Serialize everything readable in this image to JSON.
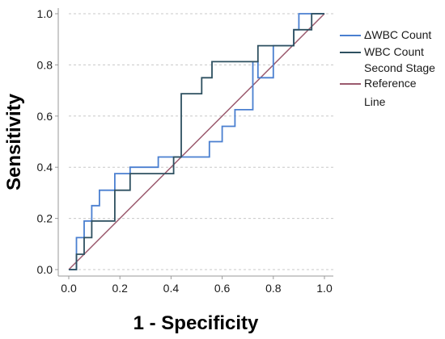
{
  "chart_data": {
    "type": "line",
    "title": "",
    "xlabel": "1 - Specificity",
    "ylabel": "Sensitivity",
    "xlim": [
      0.0,
      1.0
    ],
    "ylim": [
      0.0,
      1.0
    ],
    "x_ticks": [
      "0.0",
      "0.2",
      "0.4",
      "0.6",
      "0.8",
      "1.0"
    ],
    "y_ticks": [
      "0.0",
      "0.2",
      "0.4",
      "0.6",
      "0.8",
      "1.0"
    ],
    "grid": "horizontal dashed",
    "legend_placement": "right",
    "series": [
      {
        "name": "ΔWBC Count",
        "color": "#4a7fd0",
        "x": [
          0,
          0.03,
          0.03,
          0.06,
          0.06,
          0.09,
          0.09,
          0.12,
          0.12,
          0.18,
          0.18,
          0.24,
          0.24,
          0.35,
          0.35,
          0.41,
          0.41,
          0.55,
          0.55,
          0.6,
          0.6,
          0.65,
          0.65,
          0.72,
          0.72,
          0.74,
          0.74,
          0.8,
          0.8,
          0.85,
          0.85,
          0.88,
          0.88,
          0.9,
          0.9,
          1.0
        ],
        "y": [
          0,
          0,
          0.125,
          0.125,
          0.19,
          0.19,
          0.25,
          0.25,
          0.31,
          0.31,
          0.375,
          0.375,
          0.4,
          0.4,
          0.44,
          0.44,
          0.44,
          0.44,
          0.5,
          0.5,
          0.56,
          0.56,
          0.625,
          0.625,
          0.8125,
          0.8125,
          0.75,
          0.75,
          0.875,
          0.875,
          0.875,
          0.875,
          0.9375,
          0.9375,
          1.0,
          1.0
        ]
      },
      {
        "name": "WBC Count Second Stage",
        "color": "#2e5060",
        "x": [
          0,
          0.03,
          0.03,
          0.06,
          0.06,
          0.09,
          0.09,
          0.12,
          0.12,
          0.18,
          0.18,
          0.24,
          0.24,
          0.35,
          0.35,
          0.41,
          0.41,
          0.44,
          0.44,
          0.52,
          0.52,
          0.56,
          0.56,
          0.62,
          0.62,
          0.7,
          0.7,
          0.74,
          0.74,
          0.76,
          0.76,
          0.88,
          0.88,
          0.95,
          0.95,
          1.0
        ],
        "y": [
          0,
          0,
          0.06,
          0.06,
          0.125,
          0.125,
          0.19,
          0.19,
          0.19,
          0.19,
          0.31,
          0.31,
          0.375,
          0.375,
          0.375,
          0.375,
          0.44,
          0.44,
          0.6875,
          0.6875,
          0.75,
          0.75,
          0.8125,
          0.8125,
          0.8125,
          0.8125,
          0.8125,
          0.8125,
          0.875,
          0.875,
          0.875,
          0.875,
          0.9375,
          0.9375,
          1.0,
          1.0
        ]
      },
      {
        "name": "Reference Line",
        "color": "#9b5a6e",
        "x": [
          0,
          1.0
        ],
        "y": [
          0,
          1.0
        ]
      }
    ]
  },
  "legend": {
    "items": [
      {
        "lines": [
          "ΔWBC Count"
        ],
        "color": "#4a7fd0"
      },
      {
        "lines": [
          "WBC Count",
          "Second Stage"
        ],
        "color": "#2e5060"
      },
      {
        "lines": [
          "Reference",
          "Line"
        ],
        "color": "#9b5a6e"
      }
    ]
  }
}
